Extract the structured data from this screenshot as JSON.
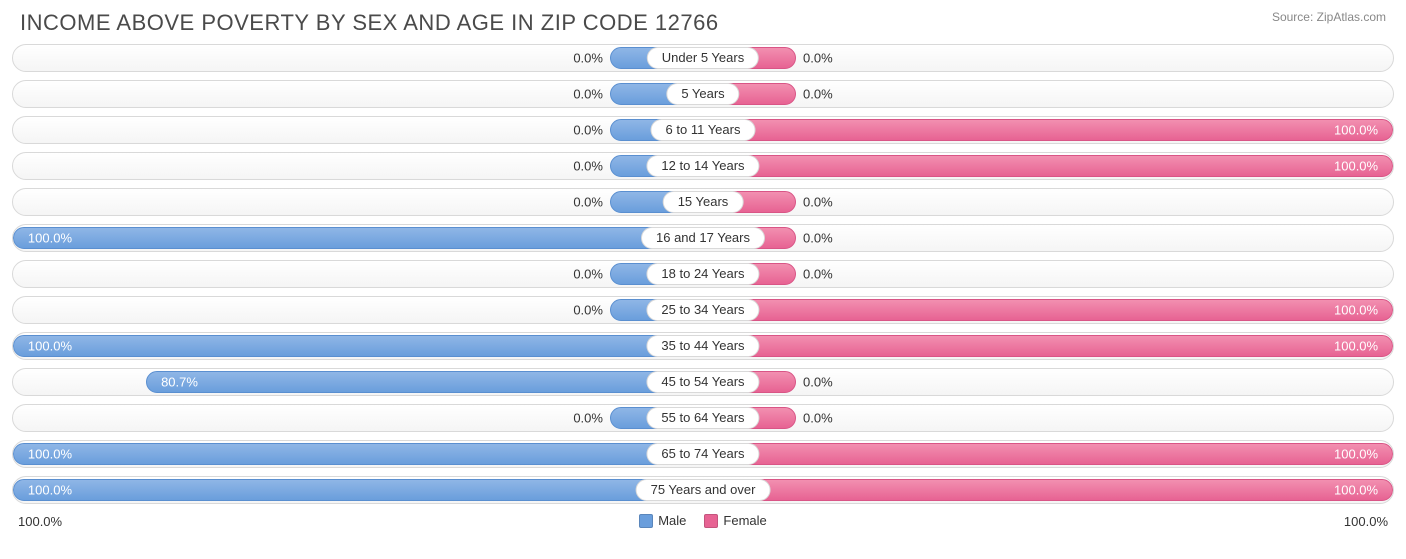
{
  "title": "INCOME ABOVE POVERTY BY SEX AND AGE IN ZIP CODE 12766",
  "source": "Source: ZipAtlas.com",
  "chart": {
    "type": "diverging-bar",
    "male_color": "#6a9edc",
    "male_color_light": "#8fb6e6",
    "female_color": "#e76393",
    "female_color_light": "#f28fb0",
    "background_color": "#ffffff",
    "row_border_color": "#d9d9d9",
    "label_fontsize": 13,
    "title_fontsize": 22,
    "xlim_left": 100.0,
    "xlim_right": 100.0,
    "min_bar_pct": 13.5,
    "legend": {
      "male": "Male",
      "female": "Female"
    },
    "axis": {
      "left": "100.0%",
      "right": "100.0%"
    },
    "rows": [
      {
        "category": "Under 5 Years",
        "male": 0.0,
        "male_label": "0.0%",
        "female": 0.0,
        "female_label": "0.0%"
      },
      {
        "category": "5 Years",
        "male": 0.0,
        "male_label": "0.0%",
        "female": 0.0,
        "female_label": "0.0%"
      },
      {
        "category": "6 to 11 Years",
        "male": 0.0,
        "male_label": "0.0%",
        "female": 100.0,
        "female_label": "100.0%"
      },
      {
        "category": "12 to 14 Years",
        "male": 0.0,
        "male_label": "0.0%",
        "female": 100.0,
        "female_label": "100.0%"
      },
      {
        "category": "15 Years",
        "male": 0.0,
        "male_label": "0.0%",
        "female": 0.0,
        "female_label": "0.0%"
      },
      {
        "category": "16 and 17 Years",
        "male": 100.0,
        "male_label": "100.0%",
        "female": 0.0,
        "female_label": "0.0%"
      },
      {
        "category": "18 to 24 Years",
        "male": 0.0,
        "male_label": "0.0%",
        "female": 0.0,
        "female_label": "0.0%"
      },
      {
        "category": "25 to 34 Years",
        "male": 0.0,
        "male_label": "0.0%",
        "female": 100.0,
        "female_label": "100.0%"
      },
      {
        "category": "35 to 44 Years",
        "male": 100.0,
        "male_label": "100.0%",
        "female": 100.0,
        "female_label": "100.0%"
      },
      {
        "category": "45 to 54 Years",
        "male": 80.7,
        "male_label": "80.7%",
        "female": 0.0,
        "female_label": "0.0%"
      },
      {
        "category": "55 to 64 Years",
        "male": 0.0,
        "male_label": "0.0%",
        "female": 0.0,
        "female_label": "0.0%"
      },
      {
        "category": "65 to 74 Years",
        "male": 100.0,
        "male_label": "100.0%",
        "female": 100.0,
        "female_label": "100.0%"
      },
      {
        "category": "75 Years and over",
        "male": 100.0,
        "male_label": "100.0%",
        "female": 100.0,
        "female_label": "100.0%"
      }
    ]
  }
}
